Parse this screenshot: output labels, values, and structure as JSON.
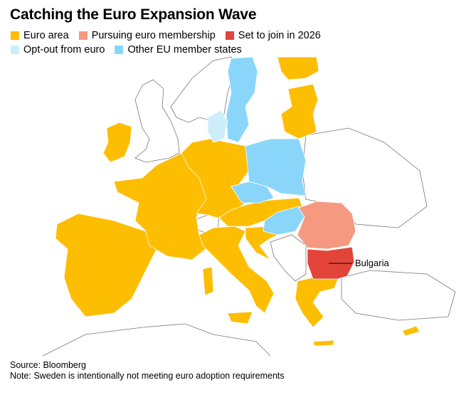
{
  "title": "Catching the Euro Expansion Wave",
  "legend": [
    {
      "label": "Euro area",
      "color": "#FDBD00"
    },
    {
      "label": "Pursuing euro membership",
      "color": "#F59A80"
    },
    {
      "label": "Set to join in 2026",
      "color": "#E3443A"
    },
    {
      "label": "Opt-out from euro",
      "color": "#CDEDFB"
    },
    {
      "label": "Other EU member states",
      "color": "#8AD6FB"
    }
  ],
  "map": {
    "annotation": "Bulgaria",
    "colors": {
      "non_eu": "#FFFFFF",
      "border": "#777777"
    }
  },
  "footer": {
    "source": "Source: Bloomberg",
    "note": "Note: Sweden is intentionally not meeting euro adoption requirements"
  }
}
